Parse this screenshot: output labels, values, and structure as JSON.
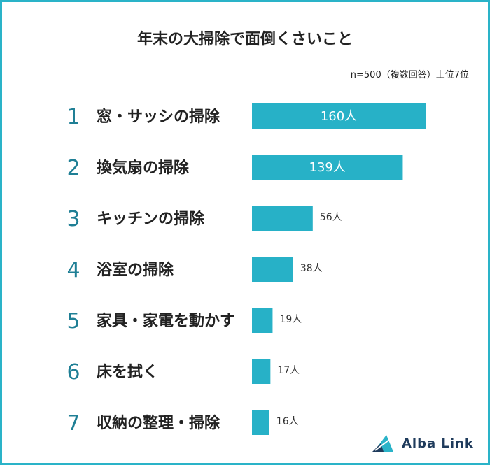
{
  "title": "年末の大掃除で面倒くさいこと",
  "subtitle": "n=500（複数回答）上位7位",
  "logo": {
    "text": "Alba Link",
    "icon": "alba-link-triangle-icon"
  },
  "colors": {
    "bar": "#27b1c7",
    "frame": "#2ab3c8",
    "rank": "#1f7f95"
  },
  "chart_data": {
    "type": "bar",
    "orientation": "horizontal",
    "ranks": [
      "1",
      "2",
      "3",
      "4",
      "5",
      "6",
      "7"
    ],
    "categories": [
      "窓・サッシの掃除",
      "換気扇の掃除",
      "キッチンの掃除",
      "浴室の掃除",
      "家具・家電を動かす",
      "床を拭く",
      "収納の整理・掃除"
    ],
    "values": [
      160,
      139,
      56,
      38,
      19,
      17,
      16
    ],
    "value_labels": [
      "160人",
      "139人",
      "56人",
      "38人",
      "19人",
      "17人",
      "16人"
    ],
    "title": "年末の大掃除で面倒くさいこと",
    "grid": false,
    "legend": "none"
  }
}
